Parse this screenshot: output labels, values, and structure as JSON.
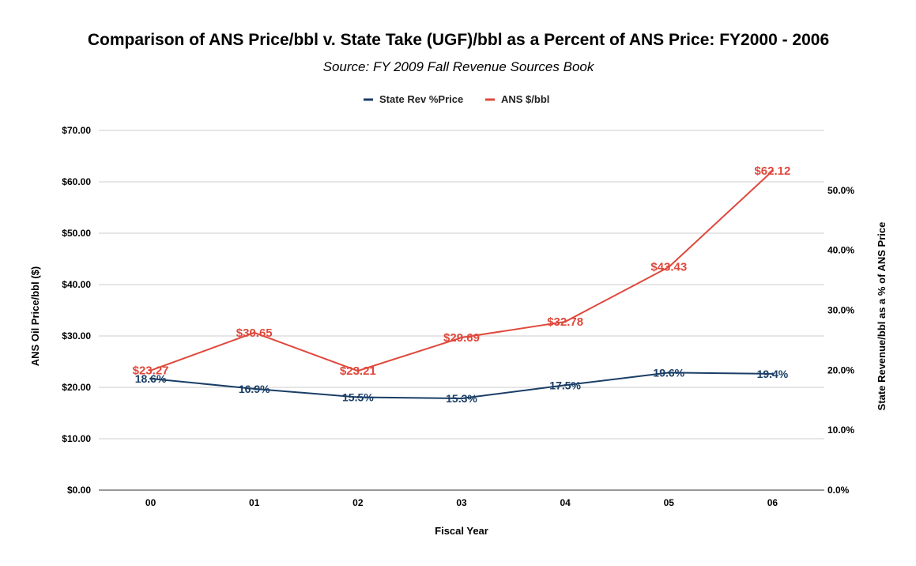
{
  "chart_data": {
    "type": "line",
    "title": "Comparison of ANS Price/bbl v. State Take (UGF)/bbl as a Percent of ANS Price: FY2000 - 2006",
    "subtitle": "Source: FY 2009 Fall Revenue Sources Book",
    "xlabel": "Fiscal Year",
    "ylabel": "ANS Oil Price/bbl ($)",
    "y2label": "State Revenue/bbl as a % of ANS Price",
    "categories": [
      "00",
      "01",
      "02",
      "03",
      "04",
      "05",
      "06"
    ],
    "series": [
      {
        "name": "State Rev %Price",
        "axis": "right",
        "color": "#1a3e66",
        "values": [
          18.6,
          16.9,
          15.5,
          15.3,
          17.5,
          19.6,
          19.4
        ],
        "labels": [
          "18.6%",
          "16.9%",
          "15.5%",
          "15.3%",
          "17.5%",
          "19.6%",
          "19.4%"
        ]
      },
      {
        "name": "ANS $/bbl",
        "axis": "left",
        "color": "#e0483c",
        "values": [
          23.27,
          30.65,
          23.21,
          29.69,
          32.78,
          43.43,
          62.12
        ],
        "labels": [
          "$23.27",
          "$30.65",
          "$23.21",
          "$29.69",
          "$32.78",
          "$43.43",
          "$62.12"
        ]
      }
    ],
    "ylim": [
      0,
      70
    ],
    "yticks": [
      "$0.00",
      "$10.00",
      "$20.00",
      "$30.00",
      "$40.00",
      "$50.00",
      "$60.00",
      "$70.00"
    ],
    "y2lim": [
      0,
      60
    ],
    "y2ticks": [
      "0.0%",
      "10.0%",
      "20.0%",
      "30.0%",
      "40.0%",
      "50.0%"
    ],
    "grid": true,
    "legend": "top-center"
  }
}
